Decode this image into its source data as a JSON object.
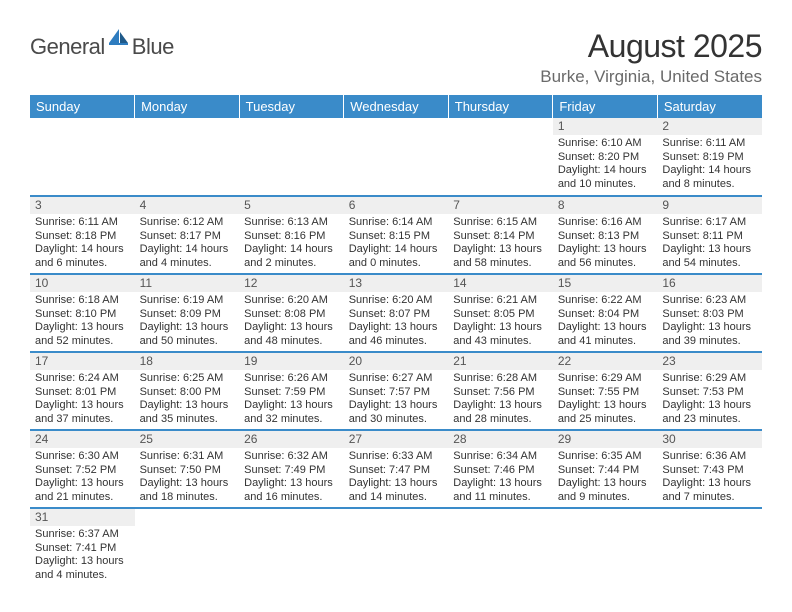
{
  "logo": {
    "word1": "General",
    "word2": "Blue"
  },
  "title": "August 2025",
  "location": "Burke, Virginia, United States",
  "colors": {
    "header_bg": "#3a8bc9",
    "header_text": "#ffffff",
    "daynum_bg": "#efefef",
    "daynum_text": "#555555",
    "border": "#3a8bc9",
    "body_text": "#333333",
    "logo_gray": "#4a4a4a",
    "logo_blue": "#2e7cbf"
  },
  "weekdays": [
    "Sunday",
    "Monday",
    "Tuesday",
    "Wednesday",
    "Thursday",
    "Friday",
    "Saturday"
  ],
  "weeks": [
    [
      null,
      null,
      null,
      null,
      null,
      {
        "n": "1",
        "sr": "Sunrise: 6:10 AM",
        "ss": "Sunset: 8:20 PM",
        "d1": "Daylight: 14 hours",
        "d2": "and 10 minutes."
      },
      {
        "n": "2",
        "sr": "Sunrise: 6:11 AM",
        "ss": "Sunset: 8:19 PM",
        "d1": "Daylight: 14 hours",
        "d2": "and 8 minutes."
      }
    ],
    [
      {
        "n": "3",
        "sr": "Sunrise: 6:11 AM",
        "ss": "Sunset: 8:18 PM",
        "d1": "Daylight: 14 hours",
        "d2": "and 6 minutes."
      },
      {
        "n": "4",
        "sr": "Sunrise: 6:12 AM",
        "ss": "Sunset: 8:17 PM",
        "d1": "Daylight: 14 hours",
        "d2": "and 4 minutes."
      },
      {
        "n": "5",
        "sr": "Sunrise: 6:13 AM",
        "ss": "Sunset: 8:16 PM",
        "d1": "Daylight: 14 hours",
        "d2": "and 2 minutes."
      },
      {
        "n": "6",
        "sr": "Sunrise: 6:14 AM",
        "ss": "Sunset: 8:15 PM",
        "d1": "Daylight: 14 hours",
        "d2": "and 0 minutes."
      },
      {
        "n": "7",
        "sr": "Sunrise: 6:15 AM",
        "ss": "Sunset: 8:14 PM",
        "d1": "Daylight: 13 hours",
        "d2": "and 58 minutes."
      },
      {
        "n": "8",
        "sr": "Sunrise: 6:16 AM",
        "ss": "Sunset: 8:13 PM",
        "d1": "Daylight: 13 hours",
        "d2": "and 56 minutes."
      },
      {
        "n": "9",
        "sr": "Sunrise: 6:17 AM",
        "ss": "Sunset: 8:11 PM",
        "d1": "Daylight: 13 hours",
        "d2": "and 54 minutes."
      }
    ],
    [
      {
        "n": "10",
        "sr": "Sunrise: 6:18 AM",
        "ss": "Sunset: 8:10 PM",
        "d1": "Daylight: 13 hours",
        "d2": "and 52 minutes."
      },
      {
        "n": "11",
        "sr": "Sunrise: 6:19 AM",
        "ss": "Sunset: 8:09 PM",
        "d1": "Daylight: 13 hours",
        "d2": "and 50 minutes."
      },
      {
        "n": "12",
        "sr": "Sunrise: 6:20 AM",
        "ss": "Sunset: 8:08 PM",
        "d1": "Daylight: 13 hours",
        "d2": "and 48 minutes."
      },
      {
        "n": "13",
        "sr": "Sunrise: 6:20 AM",
        "ss": "Sunset: 8:07 PM",
        "d1": "Daylight: 13 hours",
        "d2": "and 46 minutes."
      },
      {
        "n": "14",
        "sr": "Sunrise: 6:21 AM",
        "ss": "Sunset: 8:05 PM",
        "d1": "Daylight: 13 hours",
        "d2": "and 43 minutes."
      },
      {
        "n": "15",
        "sr": "Sunrise: 6:22 AM",
        "ss": "Sunset: 8:04 PM",
        "d1": "Daylight: 13 hours",
        "d2": "and 41 minutes."
      },
      {
        "n": "16",
        "sr": "Sunrise: 6:23 AM",
        "ss": "Sunset: 8:03 PM",
        "d1": "Daylight: 13 hours",
        "d2": "and 39 minutes."
      }
    ],
    [
      {
        "n": "17",
        "sr": "Sunrise: 6:24 AM",
        "ss": "Sunset: 8:01 PM",
        "d1": "Daylight: 13 hours",
        "d2": "and 37 minutes."
      },
      {
        "n": "18",
        "sr": "Sunrise: 6:25 AM",
        "ss": "Sunset: 8:00 PM",
        "d1": "Daylight: 13 hours",
        "d2": "and 35 minutes."
      },
      {
        "n": "19",
        "sr": "Sunrise: 6:26 AM",
        "ss": "Sunset: 7:59 PM",
        "d1": "Daylight: 13 hours",
        "d2": "and 32 minutes."
      },
      {
        "n": "20",
        "sr": "Sunrise: 6:27 AM",
        "ss": "Sunset: 7:57 PM",
        "d1": "Daylight: 13 hours",
        "d2": "and 30 minutes."
      },
      {
        "n": "21",
        "sr": "Sunrise: 6:28 AM",
        "ss": "Sunset: 7:56 PM",
        "d1": "Daylight: 13 hours",
        "d2": "and 28 minutes."
      },
      {
        "n": "22",
        "sr": "Sunrise: 6:29 AM",
        "ss": "Sunset: 7:55 PM",
        "d1": "Daylight: 13 hours",
        "d2": "and 25 minutes."
      },
      {
        "n": "23",
        "sr": "Sunrise: 6:29 AM",
        "ss": "Sunset: 7:53 PM",
        "d1": "Daylight: 13 hours",
        "d2": "and 23 minutes."
      }
    ],
    [
      {
        "n": "24",
        "sr": "Sunrise: 6:30 AM",
        "ss": "Sunset: 7:52 PM",
        "d1": "Daylight: 13 hours",
        "d2": "and 21 minutes."
      },
      {
        "n": "25",
        "sr": "Sunrise: 6:31 AM",
        "ss": "Sunset: 7:50 PM",
        "d1": "Daylight: 13 hours",
        "d2": "and 18 minutes."
      },
      {
        "n": "26",
        "sr": "Sunrise: 6:32 AM",
        "ss": "Sunset: 7:49 PM",
        "d1": "Daylight: 13 hours",
        "d2": "and 16 minutes."
      },
      {
        "n": "27",
        "sr": "Sunrise: 6:33 AM",
        "ss": "Sunset: 7:47 PM",
        "d1": "Daylight: 13 hours",
        "d2": "and 14 minutes."
      },
      {
        "n": "28",
        "sr": "Sunrise: 6:34 AM",
        "ss": "Sunset: 7:46 PM",
        "d1": "Daylight: 13 hours",
        "d2": "and 11 minutes."
      },
      {
        "n": "29",
        "sr": "Sunrise: 6:35 AM",
        "ss": "Sunset: 7:44 PM",
        "d1": "Daylight: 13 hours",
        "d2": "and 9 minutes."
      },
      {
        "n": "30",
        "sr": "Sunrise: 6:36 AM",
        "ss": "Sunset: 7:43 PM",
        "d1": "Daylight: 13 hours",
        "d2": "and 7 minutes."
      }
    ],
    [
      {
        "n": "31",
        "sr": "Sunrise: 6:37 AM",
        "ss": "Sunset: 7:41 PM",
        "d1": "Daylight: 13 hours",
        "d2": "and 4 minutes."
      },
      null,
      null,
      null,
      null,
      null,
      null
    ]
  ]
}
